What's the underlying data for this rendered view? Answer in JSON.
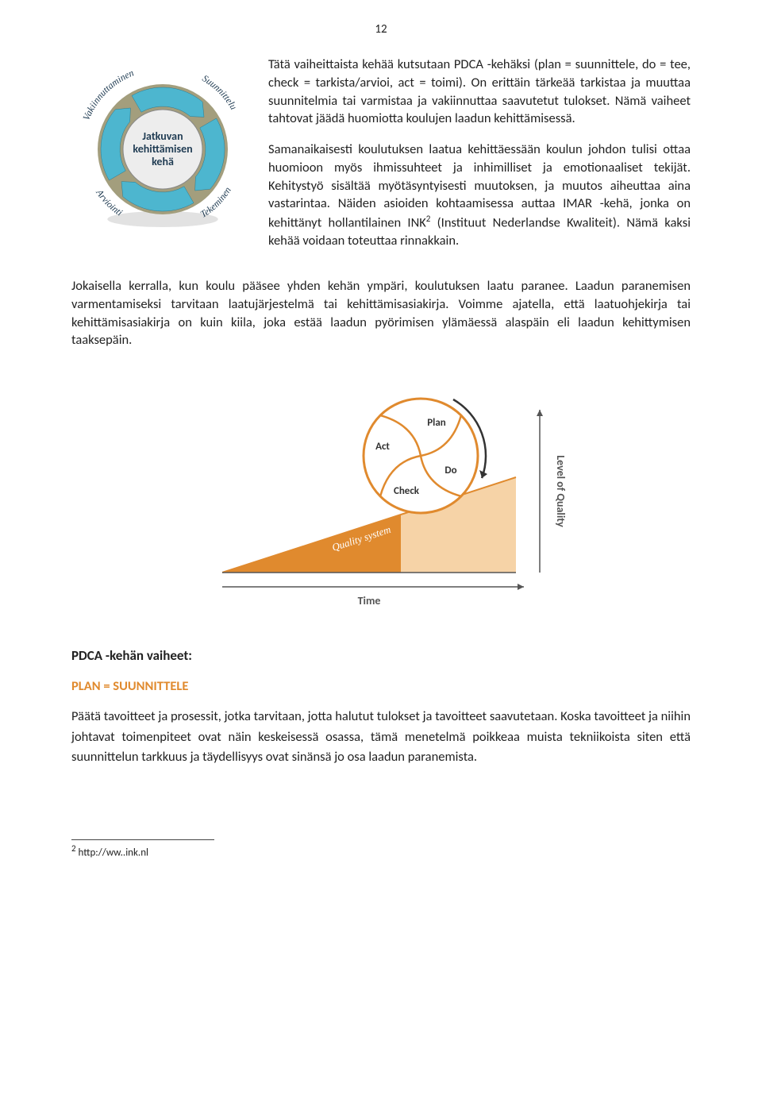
{
  "page_number": "12",
  "pdca_circle": {
    "center_top": "Jatkuvan",
    "center_mid": "kehittämisen",
    "center_bot": "kehä",
    "outer_labels": [
      "Vakiinnuttaminen",
      "Suunnittelu",
      "Tekeminen",
      "Arviointi"
    ],
    "arrow_fill": "#4db6cf",
    "ring_fill": "#a39e7d",
    "inner_fill": "#ededed",
    "label_color": "#1f3b52",
    "outer_label_fontsize": 12,
    "center_fontsize": 14
  },
  "para1": "Tätä vaiheittaista kehää kutsutaan PDCA -kehäksi (plan = suunnittele, do = tee, check = tarkista/arvioi, act = toimi). On erittäin tärkeää tarkistaa ja muuttaa suunnitelmia tai varmistaa ja vakiinnuttaa saavutetut tulokset. Nämä vaiheet tahtovat jäädä huomiotta koulujen laadun kehittämisessä.",
  "para2_a": "Samanaikaisesti koulutuksen laatua kehittäessään koulun johdon tulisi ottaa huomioon myös ihmissuhteet ja inhimilliset ja emotionaaliset tekijät. Kehitystyö sisältää myötäsyntyisesti muutoksen, ja muutos aiheuttaa aina vastarintaa. Näiden asioiden kohtaamisessa auttaa IMAR -kehä, jonka on kehittänyt hollantilainen INK",
  "para2_sup": "2",
  "para2_b": " (Instituut Nederlandse Kwaliteit). Nämä kaksi kehää voidaan toteuttaa rinnakkain.",
  "para3": "Jokaisella kerralla, kun koulu pääsee yhden kehän ympäri, koulutuksen laatu paranee. Laadun paranemisen varmentamiseksi tarvitaan laatujärjestelmä tai kehittämisasiakirja. Voimme ajatella, että laatuohjekirja tai kehittämisasiakirja on kuin kiila, joka estää laadun pyörimisen ylämäessä alaspäin eli laadun kehittymisen taaksepäin.",
  "wedge_chart": {
    "circle_labels": [
      "Plan",
      "Do",
      "Check",
      "Act"
    ],
    "wedge_label": "Quality system",
    "x_axis": "Time",
    "y_axis": "Level of Quality",
    "circle_stroke": "#e08a2e",
    "circle_fill": "#ffffff",
    "wedge_fill_dark": "#e08a2e",
    "wedge_fill_light": "#f6d3a7",
    "axis_color": "#555555",
    "label_color": "#333333",
    "label_fontsize": 13,
    "axis_fontsize": 14,
    "wedge_label_fontsize": 13
  },
  "section_heading": "PDCA -kehän vaiheet:",
  "plan_heading": "PLAN = SUUNNITTELE",
  "para4": "Päätä tavoitteet ja prosessit, jotka tarvitaan, jotta halutut tulokset ja tavoitteet saavutetaan. Koska tavoitteet ja niihin johtavat toimenpiteet ovat näin keskeisessä osassa, tämä menetelmä poikkeaa muista tekniikoista siten että suunnittelun tarkkuus ja täydellisyys ovat sinänsä jo osa laadun paranemista.",
  "footnote_marker": "2",
  "footnote_text": " http://ww..ink.nl"
}
